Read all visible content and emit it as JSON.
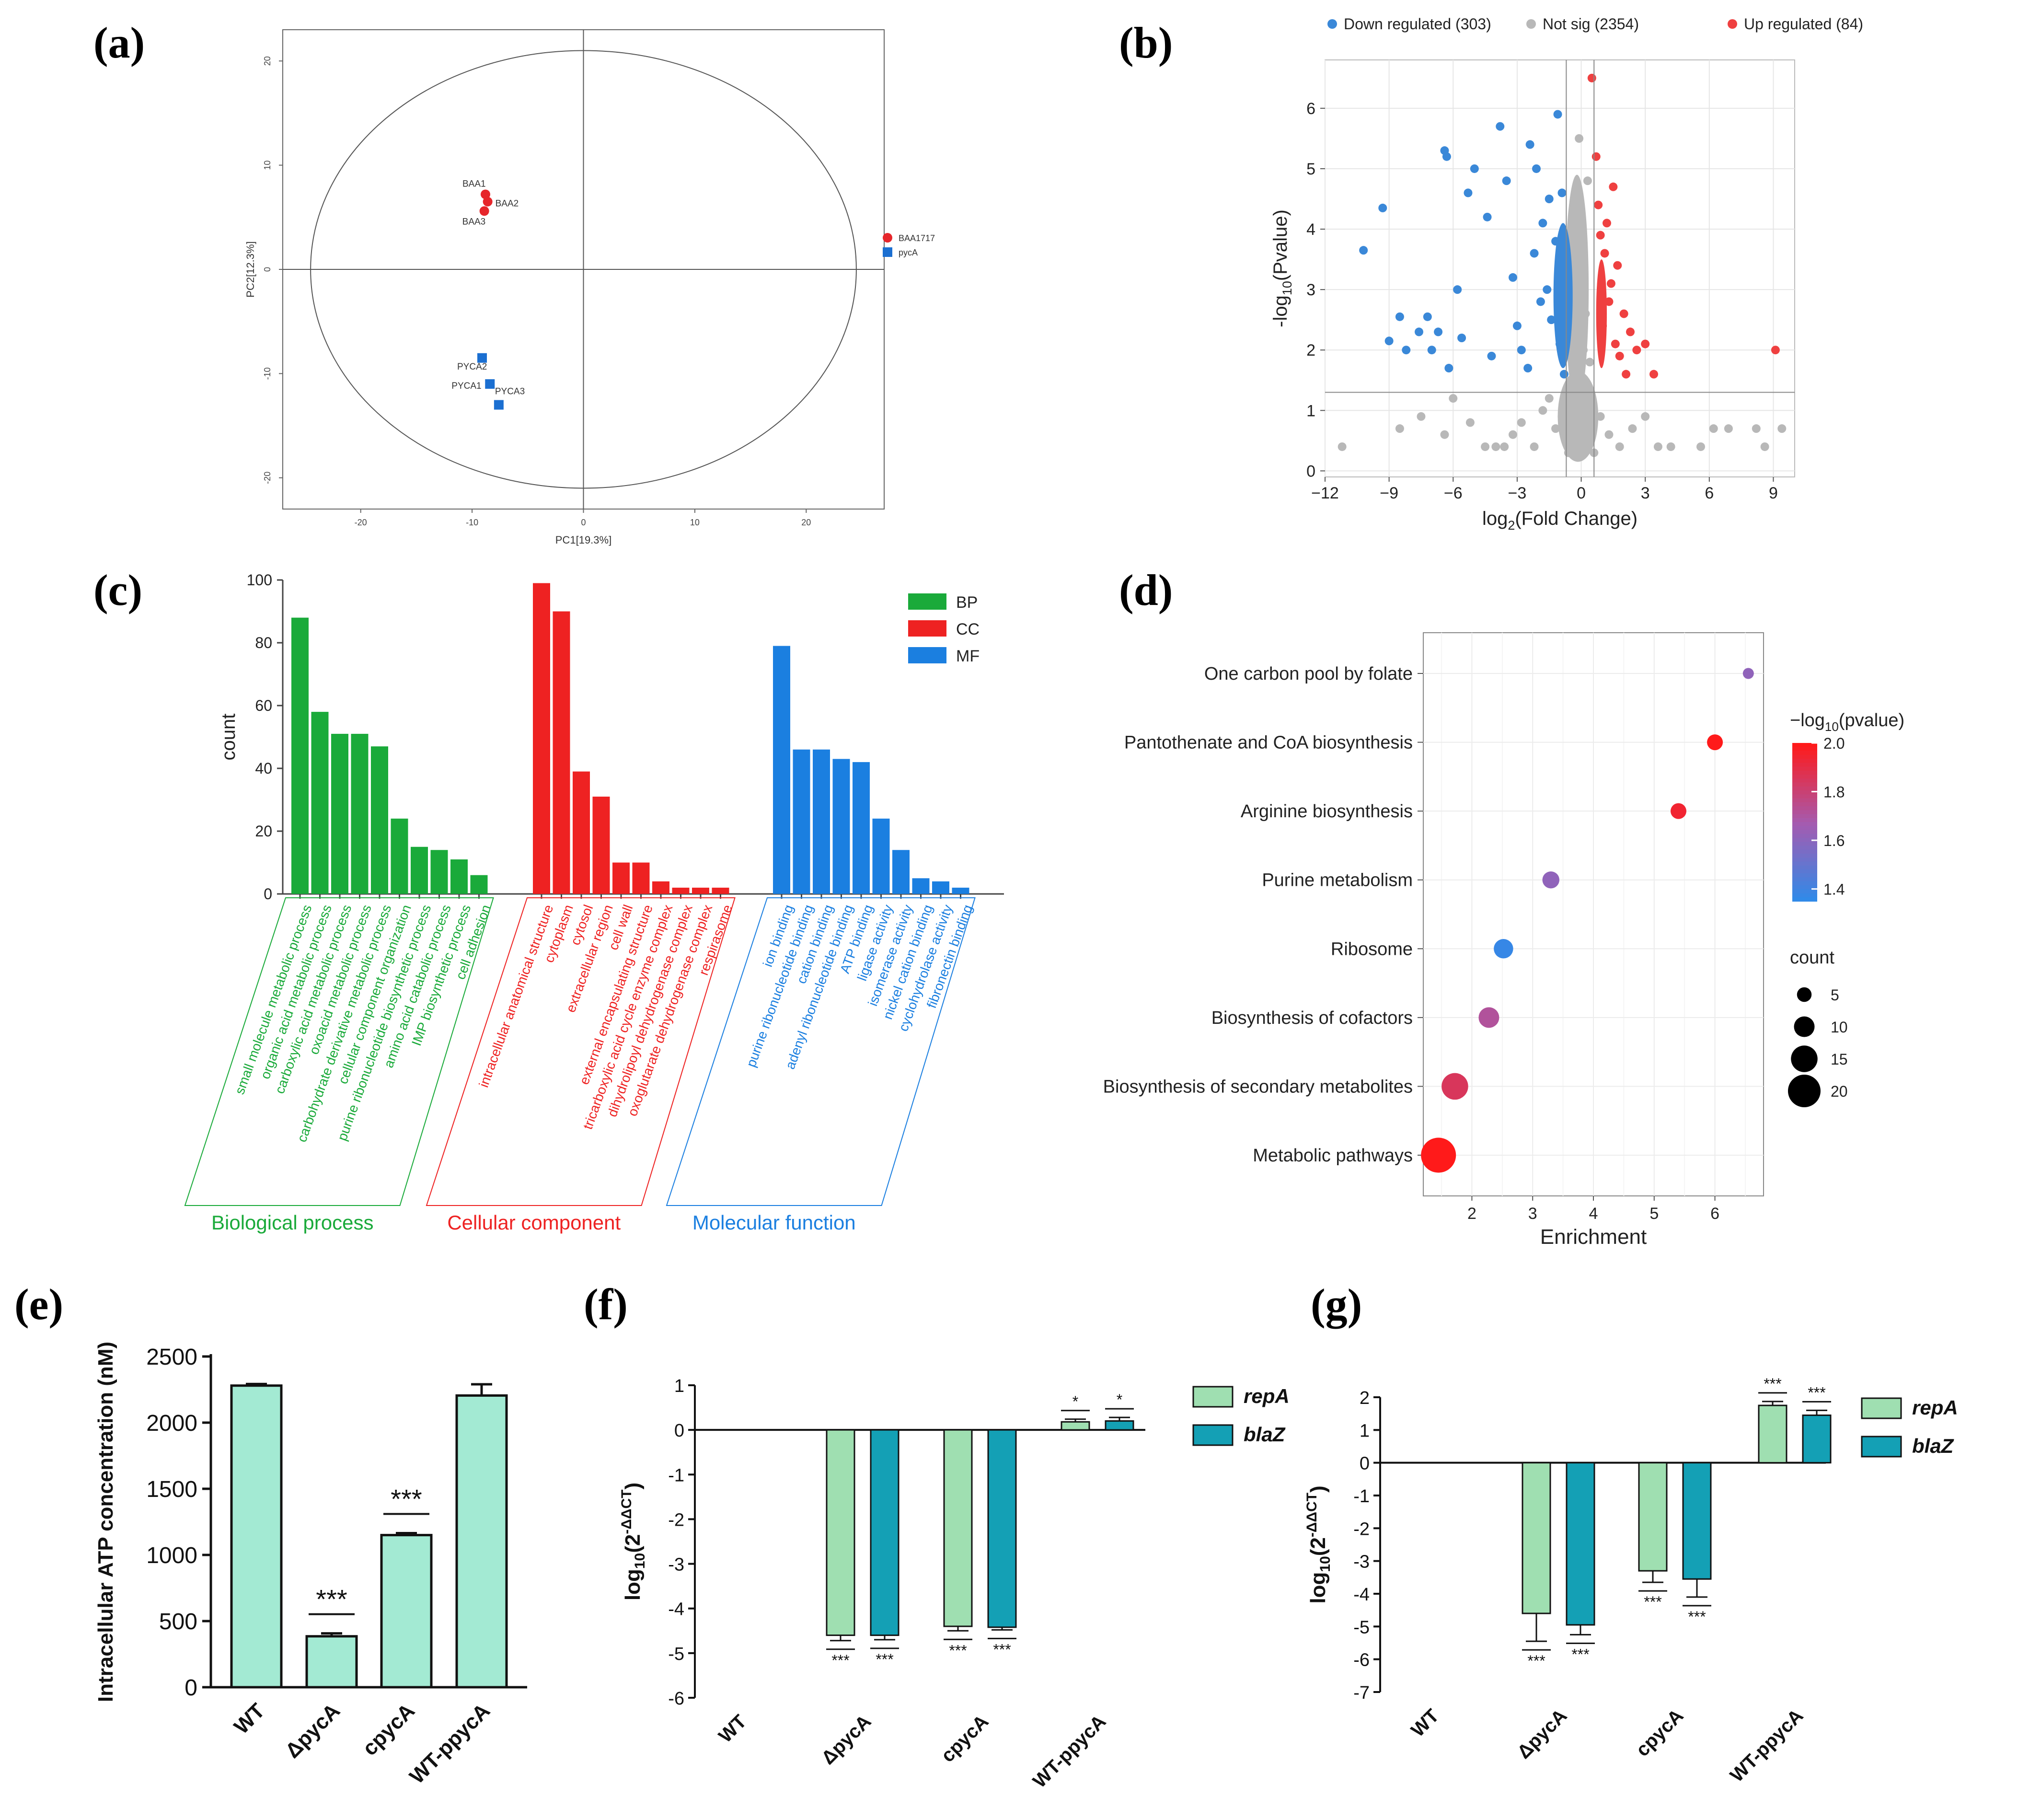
{
  "panels": {
    "a": "(a)",
    "b": "(b)",
    "c": "(c)",
    "d": "(d)",
    "e": "(e)",
    "f": "(f)",
    "g": "(g)"
  },
  "chart_data": [
    {
      "id": "a",
      "type": "scatter",
      "title": "",
      "xlabel": "PC1[19.3%]",
      "ylabel": "PC2[12.3%]",
      "xlim": [
        -27,
        27
      ],
      "ylim": [
        -23,
        23
      ],
      "xticks": [
        -20,
        -10,
        0,
        10,
        20
      ],
      "yticks": [
        -20,
        -10,
        0,
        10,
        20
      ],
      "legend": [
        "BAA1717",
        "pycA"
      ],
      "colors": {
        "BAA1717": "#e6262b",
        "pycA": "#1b6fd1"
      },
      "points": [
        {
          "label": "BAA1",
          "group": "BAA1717",
          "x": -8.8,
          "y": 7.2
        },
        {
          "label": "BAA2",
          "group": "BAA1717",
          "x": -8.6,
          "y": 6.5
        },
        {
          "label": "BAA3",
          "group": "BAA1717",
          "x": -8.9,
          "y": 5.6
        },
        {
          "label": "PYCA2",
          "group": "pycA",
          "x": -9.1,
          "y": -8.5
        },
        {
          "label": "PYCA1",
          "group": "pycA",
          "x": -8.4,
          "y": -11.0
        },
        {
          "label": "PYCA3",
          "group": "pycA",
          "x": -7.6,
          "y": -13.0
        }
      ]
    },
    {
      "id": "b",
      "type": "scatter",
      "title": "",
      "xlabel_main": "log",
      "xlabel_sub": "2",
      "xlabel_rest": "(Fold Change)",
      "ylabel_main": "-log",
      "ylabel_sub": "10",
      "ylabel_rest": "(Pvalue)",
      "xlim": [
        -12,
        10
      ],
      "ylim": [
        -0.1,
        6.8
      ],
      "xticks": [
        -12,
        -9,
        -6,
        -3,
        0,
        3,
        6,
        9
      ],
      "yticks": [
        0,
        1,
        2,
        3,
        4,
        5,
        6
      ],
      "thresholds": {
        "x": [
          -0.7,
          0.6
        ],
        "y": 1.3
      },
      "legend": [
        {
          "name": "Down regulated (303)",
          "color": "#3a88d8"
        },
        {
          "name": "Not sig (2354)",
          "color": "#b8b8b8"
        },
        {
          "name": "Up regulated (84)",
          "color": "#ef4040"
        }
      ],
      "down_points": [
        [
          -10.2,
          3.65
        ],
        [
          -9.3,
          4.35
        ],
        [
          -9.0,
          2.15
        ],
        [
          -8.5,
          2.55
        ],
        [
          -8.2,
          2.0
        ],
        [
          -7.6,
          2.3
        ],
        [
          -7.2,
          2.55
        ],
        [
          -7.0,
          2.0
        ],
        [
          -6.7,
          2.3
        ],
        [
          -6.2,
          1.7
        ],
        [
          -6.4,
          5.3
        ],
        [
          -6.3,
          5.2
        ],
        [
          -5.8,
          3.0
        ],
        [
          -5.6,
          2.2
        ],
        [
          -5.3,
          4.6
        ],
        [
          -5.0,
          5.0
        ],
        [
          -4.4,
          4.2
        ],
        [
          -4.2,
          1.9
        ],
        [
          -3.8,
          5.7
        ],
        [
          -3.5,
          4.8
        ],
        [
          -3.2,
          3.2
        ],
        [
          -3.0,
          2.4
        ],
        [
          -2.8,
          2.0
        ],
        [
          -2.5,
          1.7
        ],
        [
          -2.4,
          5.4
        ],
        [
          -2.2,
          3.6
        ],
        [
          -2.1,
          5.0
        ],
        [
          -1.9,
          2.8
        ],
        [
          -1.8,
          4.1
        ],
        [
          -1.6,
          3.0
        ],
        [
          -1.5,
          4.5
        ],
        [
          -1.4,
          2.5
        ],
        [
          -1.2,
          3.8
        ],
        [
          -1.1,
          5.9
        ],
        [
          -1.0,
          2.1
        ],
        [
          -0.9,
          4.6
        ],
        [
          -0.85,
          3.3
        ],
        [
          -0.8,
          1.6
        ]
      ],
      "up_points": [
        [
          0.5,
          6.5
        ],
        [
          0.7,
          5.2
        ],
        [
          0.8,
          4.4
        ],
        [
          0.9,
          3.9
        ],
        [
          1.0,
          2.4
        ],
        [
          1.1,
          3.6
        ],
        [
          1.2,
          4.1
        ],
        [
          1.3,
          2.8
        ],
        [
          1.4,
          3.1
        ],
        [
          1.5,
          4.7
        ],
        [
          1.6,
          2.1
        ],
        [
          1.7,
          3.4
        ],
        [
          1.8,
          1.9
        ],
        [
          2.0,
          2.6
        ],
        [
          2.1,
          1.6
        ],
        [
          2.3,
          2.3
        ],
        [
          2.6,
          2.0
        ],
        [
          3.0,
          2.1
        ],
        [
          3.4,
          1.6
        ],
        [
          9.1,
          2.0
        ]
      ],
      "ns_points": [
        [
          -11.2,
          0.4
        ],
        [
          -8.5,
          0.7
        ],
        [
          -7.5,
          0.9
        ],
        [
          -6.4,
          0.6
        ],
        [
          -6.0,
          1.2
        ],
        [
          -5.2,
          0.8
        ],
        [
          -4.5,
          0.4
        ],
        [
          -4.0,
          0.4
        ],
        [
          -3.6,
          0.4
        ],
        [
          -3.2,
          0.6
        ],
        [
          -2.8,
          0.8
        ],
        [
          -2.2,
          0.4
        ],
        [
          -1.8,
          1.0
        ],
        [
          -1.5,
          1.2
        ],
        [
          -1.2,
          0.7
        ],
        [
          -0.9,
          0.9
        ],
        [
          -0.6,
          0.3
        ],
        [
          -0.4,
          0.6
        ],
        [
          -0.2,
          1.0
        ],
        [
          0.0,
          0.5
        ],
        [
          0.2,
          1.1
        ],
        [
          0.4,
          0.8
        ],
        [
          0.6,
          0.3
        ],
        [
          0.9,
          0.9
        ],
        [
          1.3,
          0.6
        ],
        [
          1.8,
          0.4
        ],
        [
          2.4,
          0.7
        ],
        [
          3.0,
          0.9
        ],
        [
          3.6,
          0.4
        ],
        [
          4.2,
          0.4
        ],
        [
          5.6,
          0.4
        ],
        [
          6.2,
          0.7
        ],
        [
          6.9,
          0.7
        ],
        [
          8.2,
          0.7
        ],
        [
          8.6,
          0.4
        ],
        [
          9.4,
          0.7
        ],
        [
          -0.4,
          4.2
        ],
        [
          -0.2,
          3.6
        ],
        [
          0.1,
          3.2
        ],
        [
          0.3,
          4.8
        ],
        [
          -0.1,
          5.5
        ],
        [
          0.2,
          2.6
        ],
        [
          -0.3,
          2.2
        ],
        [
          0.4,
          1.8
        ],
        [
          0.0,
          4.0
        ],
        [
          -0.5,
          1.5
        ],
        [
          0.1,
          2.0
        ]
      ],
      "ns_cloud": [
        [
          -0.15,
          0.9,
          0.95,
          0.75
        ],
        [
          -0.2,
          3.0,
          0.55,
          1.9
        ]
      ]
    },
    {
      "id": "c",
      "type": "bar",
      "title": "",
      "ylabel": "count",
      "ylim": [
        0,
        100
      ],
      "yticks": [
        0,
        20,
        40,
        60,
        80,
        100
      ],
      "series": [
        {
          "name": "BP",
          "group_label": "Biological process",
          "color": "#1aaa3a",
          "categories": [
            "small molecule metabolic process",
            "organic acid metabolic process",
            "carboxylic acid metabolic process",
            "oxoacid metabolic process",
            "carbohydrate derivative metabolic process",
            "cellular component organization",
            "purine ribonucleotide biosynthetic process",
            "amino acid catabolic process",
            "IMP biosynthetic process",
            "cell adhesion"
          ],
          "values": [
            88,
            58,
            51,
            51,
            47,
            24,
            15,
            14,
            11,
            6
          ]
        },
        {
          "name": "CC",
          "group_label": "Cellular component",
          "color": "#ee2222",
          "categories": [
            "intracellular anatomical structure",
            "cytoplasm",
            "cytosol",
            "extracellular region",
            "cell wall",
            "external encapsulating structure",
            "tricarboxylic acid cycle enzyme complex",
            "dihydrolipoyl dehydrogenase complex",
            "oxoglutarate dehydrogenase complex",
            "respirasome"
          ],
          "values": [
            99,
            90,
            39,
            31,
            10,
            10,
            4,
            2,
            2,
            2
          ]
        },
        {
          "name": "MF",
          "group_label": "Molecular function",
          "color": "#1b7fe0",
          "categories": [
            "ion binding",
            "purine ribonucleotide binding",
            "cation binding",
            "adenyl ribonucleotide binding",
            "ATP binding",
            "ligase activity",
            "isomerase activity",
            "nickel cation binding",
            "cyclohydrolase activity",
            "fibronectin binding"
          ],
          "values": [
            79,
            46,
            46,
            43,
            42,
            24,
            14,
            5,
            4,
            2
          ]
        }
      ]
    },
    {
      "id": "d",
      "type": "scatter",
      "title": "",
      "xlabel": "Enrichment",
      "xlim": [
        1.2,
        6.8
      ],
      "xticks": [
        2,
        3,
        4,
        5,
        6
      ],
      "color_legend_title": "−log",
      "color_legend_sub": "10",
      "color_legend_rest": "(pvalue)",
      "color_scale": {
        "min": 1.35,
        "max": 2.0,
        "ticks": [
          2.0,
          1.8,
          1.6,
          1.4
        ],
        "tick_labels": [
          "2.0",
          "1.8",
          "1.6",
          "1.4"
        ]
      },
      "size_legend_title": "count",
      "size_legend": [
        5,
        10,
        15,
        20
      ],
      "pathways": [
        {
          "name": "One carbon pool by folate",
          "enrichment": 6.55,
          "neglog10p": 1.62,
          "count": 2
        },
        {
          "name": "Pantothenate and CoA biosynthesis",
          "enrichment": 6.0,
          "neglog10p": 2.0,
          "count": 6
        },
        {
          "name": "Arginine biosynthesis",
          "enrichment": 5.4,
          "neglog10p": 1.95,
          "count": 6
        },
        {
          "name": "Purine metabolism",
          "enrichment": 3.3,
          "neglog10p": 1.62,
          "count": 7
        },
        {
          "name": "Ribosome",
          "enrichment": 2.52,
          "neglog10p": 1.38,
          "count": 9
        },
        {
          "name": "Biosynthesis of cofactors",
          "enrichment": 2.28,
          "neglog10p": 1.72,
          "count": 10
        },
        {
          "name": "Biosynthesis of secondary metabolites",
          "enrichment": 1.72,
          "neglog10p": 1.86,
          "count": 15
        },
        {
          "name": "Metabolic pathways",
          "enrichment": 1.45,
          "neglog10p": 2.0,
          "count": 22
        }
      ]
    },
    {
      "id": "e",
      "type": "bar",
      "title": "",
      "ylabel": "Intracellular ATP concentration (nM)",
      "ylim": [
        0,
        2500
      ],
      "yticks": [
        0,
        500,
        1000,
        1500,
        2000,
        2500
      ],
      "categories": [
        "WT",
        "ΔpycA",
        "cpycA",
        "WT-ppycA"
      ],
      "values": [
        2280,
        385,
        1150,
        2205
      ],
      "errors": [
        12,
        22,
        15,
        85
      ],
      "significance": [
        "",
        "***",
        "***",
        ""
      ],
      "color": "#a3ead3"
    },
    {
      "id": "f",
      "type": "bar",
      "title": "",
      "ylabel_main": "log",
      "ylabel_sub": "10",
      "ylabel_rest": "(2",
      "ylabel_sup": "-ΔΔCT",
      "ylabel_end": ")",
      "ylim": [
        -6,
        1
      ],
      "yticks": [
        1,
        0,
        -1,
        -2,
        -3,
        -4,
        -5,
        -6
      ],
      "categories": [
        "WT",
        "ΔpycA",
        "cpycA",
        "WT-ppycA"
      ],
      "series": [
        {
          "name": "repA",
          "color": "#9fdfb1",
          "values": [
            0,
            -4.6,
            -4.4,
            0.18
          ],
          "errors": [
            0,
            0.12,
            0.1,
            0.06
          ],
          "sig": [
            "",
            "***",
            "***",
            "*"
          ]
        },
        {
          "name": "blaZ",
          "color": "#14a0b5",
          "values": [
            0,
            -4.6,
            -4.42,
            0.2
          ],
          "errors": [
            0,
            0.1,
            0.06,
            0.08
          ],
          "sig": [
            "",
            "***",
            "***",
            "*"
          ]
        }
      ]
    },
    {
      "id": "g",
      "type": "bar",
      "title": "",
      "ylabel_main": "log",
      "ylabel_sub": "10",
      "ylabel_rest": "(2",
      "ylabel_sup": "-ΔΔCT",
      "ylabel_end": ")",
      "ylim": [
        -7,
        2
      ],
      "yticks": [
        2,
        1,
        0,
        -1,
        -2,
        -3,
        -4,
        -5,
        -6,
        -7
      ],
      "categories": [
        "WT",
        "ΔpycA",
        "cpycA",
        "WT-ppycA"
      ],
      "series": [
        {
          "name": "repA",
          "color": "#9fdfb1",
          "values": [
            0,
            -4.6,
            -3.3,
            1.75
          ],
          "errors": [
            0,
            0.85,
            0.35,
            0.12
          ],
          "sig": [
            "",
            "***",
            "***",
            "***"
          ]
        },
        {
          "name": "blaZ",
          "color": "#14a0b5",
          "values": [
            0,
            -4.95,
            -3.55,
            1.45
          ],
          "errors": [
            0,
            0.3,
            0.55,
            0.15
          ],
          "sig": [
            "",
            "***",
            "***",
            "***"
          ]
        }
      ]
    }
  ]
}
